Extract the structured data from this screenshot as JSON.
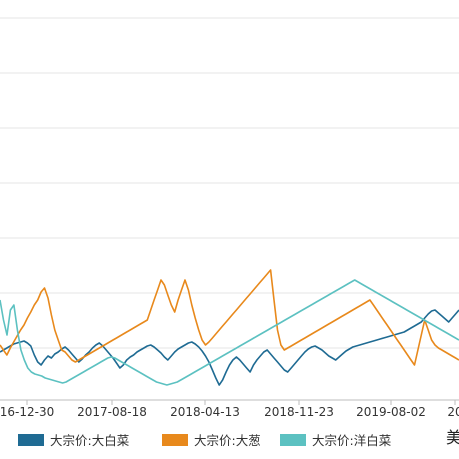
{
  "chart_data": {
    "type": "line",
    "title": "",
    "xlabel": "",
    "ylabel": "",
    "x_ticks": [
      "16-12-30",
      "2017-08-18",
      "2018-04-13",
      "2018-11-23",
      "2019-08-02",
      "20"
    ],
    "grid": true,
    "legend_position": "bottom",
    "series": [
      {
        "name": "大宗价:大白菜",
        "color": "#1f6b93",
        "values": [
          352,
          350,
          348,
          346,
          344,
          343,
          342,
          341,
          343,
          346,
          355,
          362,
          365,
          360,
          356,
          358,
          354,
          352,
          349,
          347,
          350,
          354,
          358,
          362,
          359,
          355,
          352,
          348,
          345,
          343,
          346,
          350,
          354,
          358,
          363,
          368,
          365,
          360,
          357,
          355,
          352,
          350,
          348,
          346,
          345,
          347,
          350,
          353,
          357,
          360,
          356,
          352,
          349,
          347,
          345,
          343,
          342,
          344,
          347,
          351,
          356,
          362,
          370,
          378,
          385,
          380,
          372,
          365,
          360,
          357,
          360,
          364,
          368,
          372,
          365,
          360,
          356,
          352,
          350,
          354,
          358,
          362,
          366,
          370,
          372,
          368,
          364,
          360,
          356,
          352,
          349,
          347,
          346,
          348,
          350,
          353,
          356,
          358,
          360,
          357,
          354,
          351,
          349,
          347,
          346,
          345,
          344,
          343,
          342,
          341,
          340,
          339,
          338,
          337,
          336,
          335,
          334,
          333,
          332,
          330,
          328,
          326,
          324,
          322,
          318,
          314,
          311,
          310,
          313,
          316,
          319,
          322,
          318,
          314,
          310
        ]
      },
      {
        "name": "大宗价:大葱",
        "color": "#e8891c",
        "values": [
          345,
          350,
          355,
          348,
          342,
          336,
          330,
          325,
          318,
          312,
          305,
          300,
          292,
          288,
          298,
          315,
          330,
          340,
          350,
          352,
          356,
          360,
          362,
          360,
          358,
          356,
          354,
          352,
          350,
          348,
          346,
          344,
          342,
          340,
          338,
          336,
          334,
          332,
          330,
          328,
          326,
          324,
          322,
          320,
          310,
          300,
          290,
          280,
          285,
          295,
          305,
          312,
          300,
          290,
          280,
          290,
          305,
          318,
          330,
          340,
          345,
          342,
          338,
          334,
          330,
          326,
          322,
          318,
          314,
          310,
          306,
          302,
          298,
          294,
          290,
          286,
          282,
          278,
          274,
          270,
          300,
          330,
          345,
          350,
          348,
          346,
          344,
          342,
          340,
          338,
          336,
          334,
          332,
          330,
          328,
          326,
          324,
          322,
          320,
          318,
          316,
          314,
          312,
          310,
          308,
          306,
          304,
          302,
          300,
          305,
          310,
          315,
          320,
          325,
          330,
          335,
          340,
          345,
          350,
          355,
          360,
          365,
          350,
          335,
          320,
          330,
          340,
          345,
          348,
          350,
          352,
          354,
          356,
          358,
          360
        ]
      },
      {
        "name": "大宗价:洋白菜",
        "color": "#5cc1c1",
        "values": [
          300,
          320,
          335,
          310,
          305,
          330,
          350,
          360,
          368,
          372,
          374,
          375,
          376,
          378,
          379,
          380,
          381,
          382,
          383,
          382,
          380,
          378,
          376,
          374,
          372,
          370,
          368,
          366,
          364,
          362,
          360,
          358,
          357,
          358,
          360,
          362,
          364,
          366,
          368,
          370,
          372,
          374,
          376,
          378,
          380,
          382,
          383,
          384,
          385,
          384,
          383,
          382,
          380,
          378,
          376,
          374,
          372,
          370,
          368,
          366,
          364,
          362,
          360,
          358,
          356,
          354,
          352,
          350,
          348,
          346,
          344,
          342,
          340,
          338,
          336,
          334,
          332,
          330,
          328,
          326,
          324,
          322,
          320,
          318,
          316,
          314,
          312,
          310,
          308,
          306,
          304,
          302,
          300,
          298,
          296,
          294,
          292,
          290,
          288,
          286,
          284,
          282,
          280,
          282,
          284,
          286,
          288,
          290,
          292,
          294,
          296,
          298,
          300,
          302,
          304,
          306,
          308,
          310,
          312,
          314,
          316,
          318,
          320,
          322,
          324,
          326,
          328,
          330,
          332,
          334,
          336,
          338,
          340
        ]
      }
    ]
  },
  "corner_text": "美"
}
